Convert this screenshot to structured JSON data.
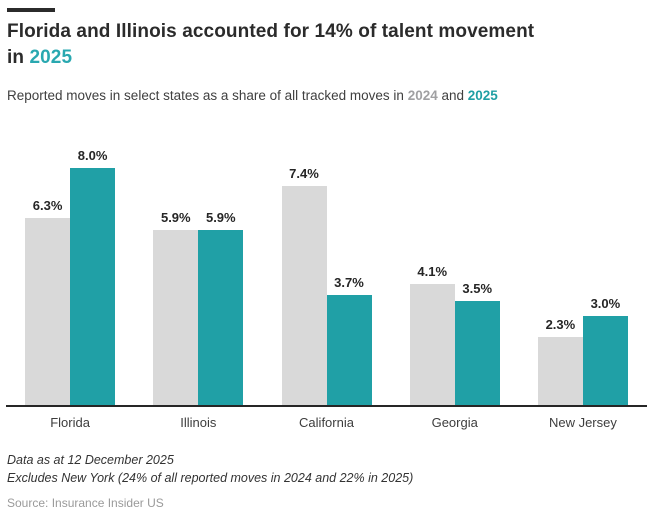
{
  "header": {
    "title_line1": "Florida and Illinois accounted for 14% of talent movement",
    "title_line2_prefix": "in ",
    "title_accent": "2025",
    "subtitle_text": "Reported moves in select states as a share of all tracked moves in ",
    "subtitle_year1": "2024",
    "subtitle_mid": " and ",
    "subtitle_year2": "2025"
  },
  "chart_data": {
    "type": "bar",
    "categories": [
      "Florida",
      "Illinois",
      "California",
      "Georgia",
      "New Jersey"
    ],
    "series": [
      {
        "name": "2024",
        "color": "#d9d9d9",
        "values": [
          6.3,
          5.9,
          7.4,
          4.1,
          2.3
        ]
      },
      {
        "name": "2025",
        "color": "#20a0a6",
        "values": [
          8.0,
          5.9,
          3.7,
          3.5,
          3.0
        ]
      }
    ],
    "value_suffix": "%",
    "ylim": [
      0,
      8.0
    ],
    "bar_labels": true,
    "legend_position": "in-subtitle",
    "grid": false
  },
  "colors": {
    "accent_teal": "#20a0a6",
    "bar_gray": "#d9d9d9",
    "axis": "#262626"
  },
  "footnotes": {
    "note1": "Data as at 12 December 2025",
    "note2": "Excludes New York (24% of all reported moves in 2024 and 22% in 2025)",
    "source": "Source: Insurance Insider US"
  }
}
